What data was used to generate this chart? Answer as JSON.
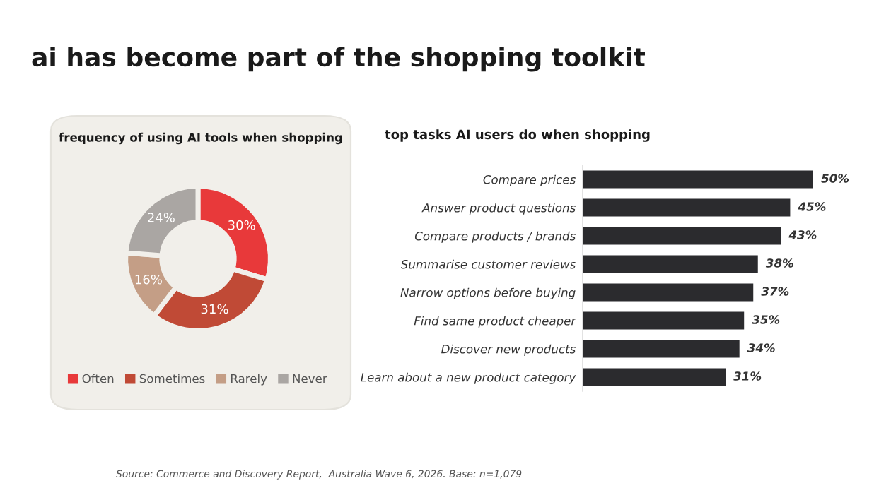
{
  "chart_data": [
    {
      "type": "other",
      "title": "ai has become part of the shopping toolkit",
      "annotations": [
        "Source: Commerce and Discovery Report,  Australia Wave 6, 2026. Base: n=1,079"
      ]
    },
    {
      "type": "donut",
      "title": "frequency of using AI tools when shopping",
      "categories": [
        "Often",
        "Sometimes",
        "Rarely",
        "Never"
      ],
      "values": [
        30,
        31,
        16,
        24
      ],
      "colors": [
        "#e8393a",
        "#c04a36",
        "#c49e86",
        "#aaa6a3"
      ],
      "value_labels": [
        "30%",
        "31%",
        "16%",
        "24%"
      ],
      "legend": "bottom"
    },
    {
      "type": "bar",
      "orientation": "horizontal",
      "title": "top tasks AI users do when shopping",
      "categories": [
        "Compare prices",
        "Answer product questions",
        "Compare products / brands",
        "Summarise customer reviews",
        "Narrow options before buying",
        "Find same product cheaper",
        "Discover new products",
        "Learn about a new product category"
      ],
      "values": [
        50,
        45,
        43,
        38,
        37,
        35,
        34,
        31
      ],
      "value_labels": [
        "50%",
        "45%",
        "43%",
        "38%",
        "37%",
        "35%",
        "34%",
        "31%"
      ],
      "color": "#2b2b2e",
      "tick_labels": "y"
    }
  ]
}
